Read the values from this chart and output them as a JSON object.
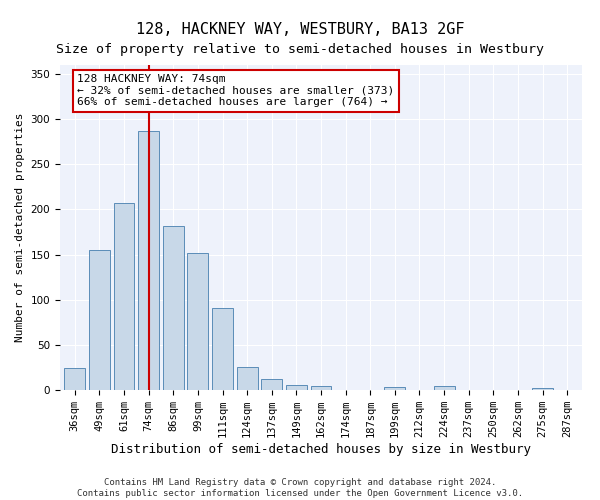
{
  "title": "128, HACKNEY WAY, WESTBURY, BA13 2GF",
  "subtitle": "Size of property relative to semi-detached houses in Westbury",
  "xlabel": "Distribution of semi-detached houses by size in Westbury",
  "ylabel": "Number of semi-detached properties",
  "categories": [
    "36sqm",
    "49sqm",
    "61sqm",
    "74sqm",
    "86sqm",
    "99sqm",
    "111sqm",
    "124sqm",
    "137sqm",
    "149sqm",
    "162sqm",
    "174sqm",
    "187sqm",
    "199sqm",
    "212sqm",
    "224sqm",
    "237sqm",
    "250sqm",
    "262sqm",
    "275sqm",
    "287sqm"
  ],
  "values": [
    24,
    155,
    207,
    287,
    182,
    152,
    91,
    25,
    12,
    5,
    4,
    0,
    0,
    3,
    0,
    4,
    0,
    0,
    0,
    2,
    0
  ],
  "bar_color": "#c8d8e8",
  "bar_edge_color": "#5b8db8",
  "highlight_bar_index": 3,
  "highlight_line_color": "#cc0000",
  "annotation_text": "128 HACKNEY WAY: 74sqm\n← 32% of semi-detached houses are smaller (373)\n66% of semi-detached houses are larger (764) →",
  "annotation_box_color": "#ffffff",
  "annotation_box_edge_color": "#cc0000",
  "ylim": [
    0,
    360
  ],
  "yticks": [
    0,
    50,
    100,
    150,
    200,
    250,
    300,
    350
  ],
  "background_color": "#eef2fb",
  "footer_line1": "Contains HM Land Registry data © Crown copyright and database right 2024.",
  "footer_line2": "Contains public sector information licensed under the Open Government Licence v3.0.",
  "title_fontsize": 11,
  "subtitle_fontsize": 9.5,
  "xlabel_fontsize": 9,
  "ylabel_fontsize": 8,
  "tick_fontsize": 7.5,
  "annotation_fontsize": 8,
  "footer_fontsize": 6.5
}
